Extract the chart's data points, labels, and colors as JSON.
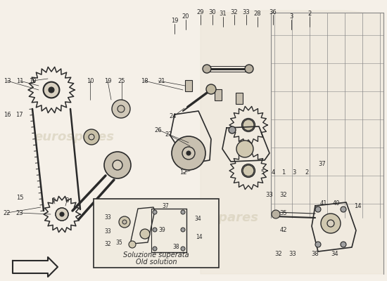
{
  "bg_color": "#f5f0e8",
  "line_color": "#2a2a2a",
  "light_line_color": "#888888",
  "watermark_color": "#d0c8b0",
  "inset_label_it": "Soluzione superata",
  "inset_label_en": "Old solution"
}
